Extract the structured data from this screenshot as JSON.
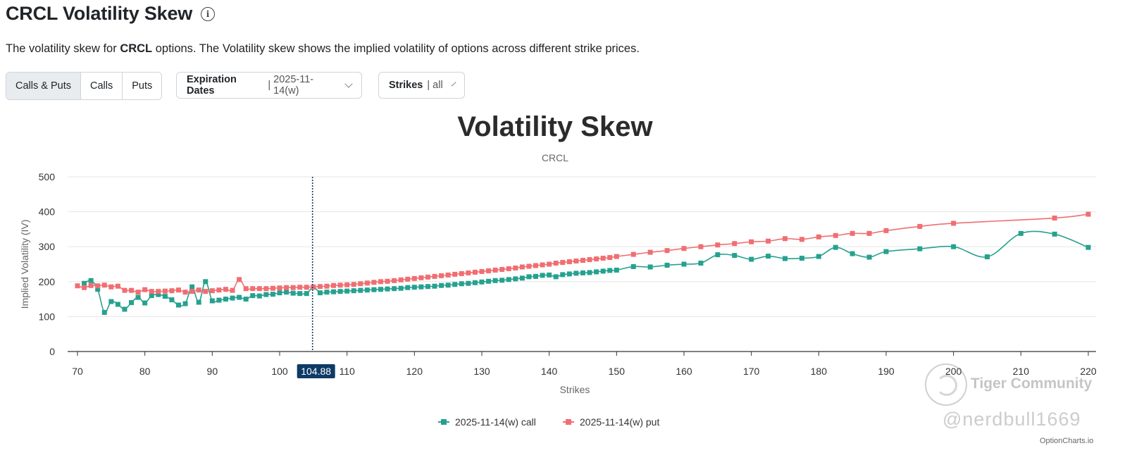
{
  "header": {
    "title": "CRCL Volatility Skew",
    "desc_prefix": "The volatility skew for ",
    "desc_ticker": "CRCL",
    "desc_suffix": " options. The Volatility skew shows the implied volatility of options across different strike prices."
  },
  "filters": {
    "segments": [
      "Calls & Puts",
      "Calls",
      "Puts"
    ],
    "active_segment": "Calls & Puts",
    "expiration": {
      "label": "Expiration Dates",
      "value": "2025-11-14(w)"
    },
    "strikes": {
      "label": "Strikes",
      "value": "all"
    }
  },
  "watermark": {
    "brand": "Tiger Community",
    "user": "@nerdbull1669"
  },
  "credit": "OptionCharts.io",
  "colors": {
    "call": "#26a18f",
    "put": "#f06e72",
    "marker": "#0d3b66"
  },
  "chart_data": {
    "type": "line",
    "title": "Volatility Skew",
    "subtitle": "CRCL",
    "xlabel": "Strikes",
    "ylabel": "Implied Volatility (IV)",
    "xlim": [
      69,
      221
    ],
    "ylim": [
      0,
      500
    ],
    "x_ticks": [
      70,
      80,
      90,
      100,
      110,
      120,
      130,
      140,
      150,
      160,
      170,
      180,
      190,
      200,
      210,
      220
    ],
    "y_ticks": [
      0,
      100,
      200,
      300,
      400,
      500
    ],
    "current_price": 104.88,
    "current_price_label": "104.88",
    "legend": [
      "2025-11-14(w) call",
      "2025-11-14(w) put"
    ],
    "series": [
      {
        "name": "2025-11-14(w) call",
        "x": [
          71,
          72,
          73,
          74,
          75,
          76,
          77,
          78,
          79,
          80,
          81,
          82,
          83,
          84,
          85,
          86,
          87,
          88,
          89,
          90,
          91,
          92,
          93,
          94,
          95,
          96,
          97,
          98,
          99,
          100,
          101,
          102,
          103,
          104,
          105,
          106,
          107,
          108,
          109,
          110,
          111,
          112,
          113,
          114,
          115,
          116,
          117,
          118,
          119,
          120,
          121,
          122,
          123,
          124,
          125,
          126,
          127,
          128,
          129,
          130,
          131,
          132,
          133,
          134,
          135,
          136,
          137,
          138,
          139,
          140,
          141,
          142,
          143,
          144,
          145,
          146,
          147,
          148,
          149,
          150,
          152.5,
          155,
          157.5,
          160,
          162.5,
          165,
          167.5,
          170,
          172.5,
          175,
          177.5,
          180,
          182.5,
          185,
          187.5,
          190,
          195,
          200,
          205,
          210,
          215,
          220
        ],
        "values": [
          195,
          203,
          178,
          112,
          143,
          135,
          121,
          140,
          155,
          139,
          160,
          163,
          158,
          148,
          133,
          137,
          185,
          141,
          200,
          145,
          147,
          150,
          153,
          155,
          150,
          160,
          159,
          163,
          164,
          168,
          170,
          167,
          166,
          166,
          184,
          168,
          170,
          171,
          172,
          173,
          174,
          175,
          176,
          177,
          178,
          179,
          180,
          181,
          183,
          184,
          185,
          186,
          187,
          189,
          190,
          192,
          194,
          195,
          197,
          199,
          201,
          203,
          204,
          206,
          208,
          210,
          214,
          215,
          218,
          219,
          214,
          220,
          222,
          224,
          225,
          226,
          228,
          230,
          232,
          233,
          243,
          242,
          247,
          250,
          253,
          277,
          275,
          264,
          273,
          266,
          267,
          272,
          298,
          280,
          270,
          286,
          294,
          300,
          271,
          338,
          336,
          298
        ]
      },
      {
        "name": "2025-11-14(w) put",
        "x": [
          70,
          71,
          72,
          73,
          74,
          75,
          76,
          77,
          78,
          79,
          80,
          81,
          82,
          83,
          84,
          85,
          86,
          87,
          88,
          89,
          90,
          91,
          92,
          93,
          94,
          95,
          96,
          97,
          98,
          99,
          100,
          101,
          102,
          103,
          104,
          105,
          106,
          107,
          108,
          109,
          110,
          111,
          112,
          113,
          114,
          115,
          116,
          117,
          118,
          119,
          120,
          121,
          122,
          123,
          124,
          125,
          126,
          127,
          128,
          129,
          130,
          131,
          132,
          133,
          134,
          135,
          136,
          137,
          138,
          139,
          140,
          141,
          142,
          143,
          144,
          145,
          146,
          147,
          148,
          149,
          150,
          152.5,
          155,
          157.5,
          160,
          162.5,
          165,
          167.5,
          170,
          172.5,
          175,
          177.5,
          180,
          182.5,
          185,
          187.5,
          190,
          195,
          200,
          215,
          220
        ],
        "values": [
          188,
          183,
          189,
          188,
          190,
          185,
          187,
          175,
          175,
          170,
          177,
          172,
          172,
          173,
          174,
          176,
          170,
          172,
          176,
          172,
          174,
          176,
          178,
          175,
          206,
          180,
          180,
          180,
          180,
          181,
          182,
          183,
          183,
          184,
          184,
          185,
          186,
          187,
          189,
          190,
          191,
          192,
          194,
          196,
          198,
          200,
          201,
          203,
          205,
          207,
          209,
          211,
          213,
          215,
          217,
          219,
          221,
          223,
          225,
          227,
          229,
          231,
          233,
          235,
          237,
          239,
          242,
          244,
          246,
          248,
          250,
          253,
          255,
          257,
          259,
          261,
          263,
          265,
          267,
          269,
          272,
          278,
          284,
          289,
          295,
          300,
          305,
          309,
          314,
          316,
          323,
          321,
          328,
          332,
          338,
          338,
          346,
          358,
          367,
          382,
          393
        ]
      }
    ]
  }
}
